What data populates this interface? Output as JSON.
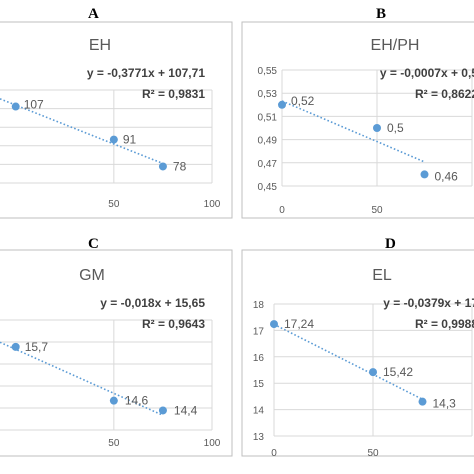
{
  "panels": [
    {
      "letter": "A"
    },
    {
      "letter": "B"
    },
    {
      "letter": "C"
    },
    {
      "letter": "D"
    }
  ],
  "colors": {
    "marker": "#5b9bd5",
    "trendline": "#5b9bd5",
    "grid": "#d9d9d9",
    "border": "#bfbfbf",
    "text": "#595959",
    "equation": "#404040"
  },
  "chart_data": [
    {
      "type": "scatter",
      "title": "EH",
      "x": [
        0,
        50,
        75
      ],
      "y": [
        107,
        91,
        78
      ],
      "point_labels": [
        "107",
        "91",
        "78"
      ],
      "x_ticks": [
        "50",
        "100"
      ],
      "y_ticks": [],
      "equation": "y = -0,3771x + 107,71",
      "r2": "R² = 0,9831",
      "trendline": {
        "slope": -0.3771,
        "intercept": 107.71
      },
      "xlim": [
        -8,
        100
      ],
      "ylim": [
        70,
        115
      ],
      "grid": true
    },
    {
      "type": "scatter",
      "title": "EH/PH",
      "x": [
        0,
        50,
        75
      ],
      "y": [
        0.52,
        0.5,
        0.46
      ],
      "point_labels": [
        "0,52",
        "0,5",
        "0,46"
      ],
      "x_ticks": [
        "0",
        "50"
      ],
      "y_ticks": [
        "0,45",
        "0,47",
        "0,49",
        "0,51",
        "0,53",
        "0,55"
      ],
      "equation": "y = -0,0007x + 0,5",
      "r2": "R² = 0,8622",
      "trendline": {
        "slope": -0.0007,
        "intercept": 0.5233
      },
      "xlim": [
        0,
        100
      ],
      "ylim": [
        0.45,
        0.55
      ],
      "grid": true
    },
    {
      "type": "scatter",
      "title": "GM",
      "x": [
        0,
        50,
        75
      ],
      "y": [
        15.7,
        14.6,
        14.4
      ],
      "point_labels": [
        "15,7",
        "14,6",
        "14,4"
      ],
      "x_ticks": [
        "50",
        "100"
      ],
      "y_ticks": [],
      "equation": "y = -0,018x + 15,65",
      "r2": "R² = 0,9643",
      "trendline": {
        "slope": -0.018,
        "intercept": 15.65
      },
      "xlim": [
        -8,
        100
      ],
      "ylim": [
        14.0,
        16.25
      ],
      "grid": true
    },
    {
      "type": "scatter",
      "title": "EL",
      "x": [
        0,
        50,
        75
      ],
      "y": [
        17.24,
        15.42,
        14.3
      ],
      "point_labels": [
        "17,24",
        "15,42",
        "14,3"
      ],
      "x_ticks": [
        "0",
        "50"
      ],
      "y_ticks": [
        "13",
        "14",
        "15",
        "16",
        "17",
        "18"
      ],
      "equation": "y = -0,0379x + 17",
      "r2": "R² = 0,9988",
      "trendline": {
        "slope": -0.0379,
        "intercept": 17.23
      },
      "xlim": [
        0,
        100
      ],
      "ylim": [
        13,
        18
      ],
      "grid": true
    }
  ]
}
